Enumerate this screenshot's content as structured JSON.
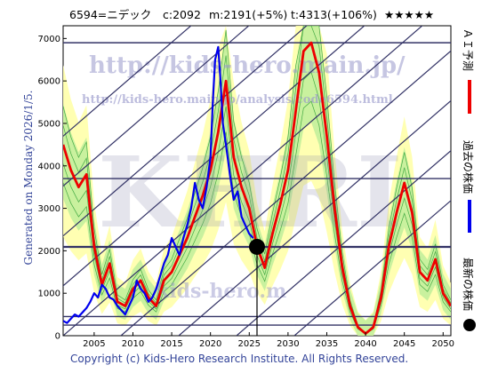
{
  "header": {
    "stock": "6594=ニデック",
    "current": "c:2092",
    "median": "m:2191(+5%)",
    "target": "t:4313(+106%)",
    "stars": "★★★★★"
  },
  "side_text": "Generated on Monday 2026/1/5.",
  "copyright": "Copyright (c) Kids-Hero Research Institute. All Rights Reserved.",
  "watermarks": {
    "url_main": "http://kids-hero.main.jp/",
    "url_analysis": "http://kids-hero.main.jp/analysis/code6594.html",
    "url_bottom": "kids-hero.m",
    "big": "KHRI"
  },
  "legend": {
    "forecast": "ＡＩ予測",
    "past": "過去の株価",
    "latest": "最新の株価"
  },
  "colors": {
    "past": "#0000ee",
    "forecast": "#ee0000",
    "band_outer": "#ffffaa",
    "band_inner": "#bbee99",
    "lines": "#333366"
  },
  "chart_data": {
    "type": "line",
    "xlim": [
      2001,
      2051
    ],
    "ylim": [
      0,
      7300
    ],
    "x_ticks": [
      2005,
      2010,
      2015,
      2020,
      2025,
      2030,
      2035,
      2040,
      2045,
      2050
    ],
    "y_ticks": [
      0,
      1000,
      2000,
      3000,
      4000,
      5000,
      6000,
      7000
    ],
    "horizontal_levels": [
      250,
      450,
      2092,
      3700,
      6900
    ],
    "latest_point": {
      "x": 2026.0,
      "y": 2092
    },
    "series": [
      {
        "key": "past",
        "x": [
          2001,
          2001.5,
          2002,
          2002.5,
          2003,
          2003.5,
          2004,
          2004.5,
          2005,
          2005.5,
          2006,
          2006.5,
          2007,
          2007.5,
          2008,
          2008.5,
          2009,
          2009.5,
          2010,
          2010.5,
          2011,
          2011.5,
          2012,
          2012.5,
          2013,
          2013.5,
          2014,
          2014.5,
          2015,
          2015.5,
          2016,
          2016.5,
          2017,
          2017.5,
          2018,
          2018.5,
          2019,
          2019.5,
          2020,
          2020.3,
          2020.6,
          2021,
          2021.3,
          2021.6,
          2022,
          2022.5,
          2023,
          2023.5,
          2024,
          2024.5,
          2025,
          2025.5
        ],
        "values": [
          350,
          300,
          400,
          500,
          450,
          550,
          650,
          800,
          1000,
          900,
          1200,
          1100,
          900,
          850,
          700,
          600,
          500,
          700,
          900,
          1300,
          1100,
          1000,
          800,
          900,
          1100,
          1400,
          1700,
          1900,
          2300,
          2100,
          1900,
          2300,
          2600,
          3000,
          3600,
          3200,
          3000,
          3500,
          4200,
          5500,
          6500,
          6800,
          6000,
          5000,
          4500,
          3800,
          3200,
          3400,
          2800,
          2600,
          2400,
          2300
        ]
      },
      {
        "key": "forecast",
        "x": [
          2001,
          2002,
          2003,
          2004,
          2005,
          2006,
          2007,
          2008,
          2009,
          2010,
          2011,
          2012,
          2013,
          2014,
          2015,
          2016,
          2017,
          2018,
          2019,
          2020,
          2021,
          2022,
          2023,
          2024,
          2025,
          2026,
          2027,
          2028,
          2029,
          2030,
          2031,
          2032,
          2033,
          2034,
          2035,
          2036,
          2037,
          2038,
          2039,
          2040,
          2041,
          2042,
          2043,
          2044,
          2045,
          2046,
          2047,
          2048,
          2049,
          2050,
          2051
        ],
        "values": [
          4500,
          3900,
          3500,
          3800,
          2100,
          1200,
          1700,
          800,
          700,
          1100,
          1300,
          900,
          700,
          1300,
          1500,
          1900,
          2300,
          2800,
          3300,
          3900,
          4800,
          6000,
          4200,
          3500,
          3000,
          2100,
          1600,
          2400,
          3100,
          3900,
          5300,
          6700,
          6900,
          6200,
          4700,
          3000,
          1600,
          700,
          200,
          50,
          200,
          900,
          2100,
          2900,
          3600,
          2900,
          1500,
          1300,
          1800,
          1000,
          700
        ]
      }
    ]
  }
}
